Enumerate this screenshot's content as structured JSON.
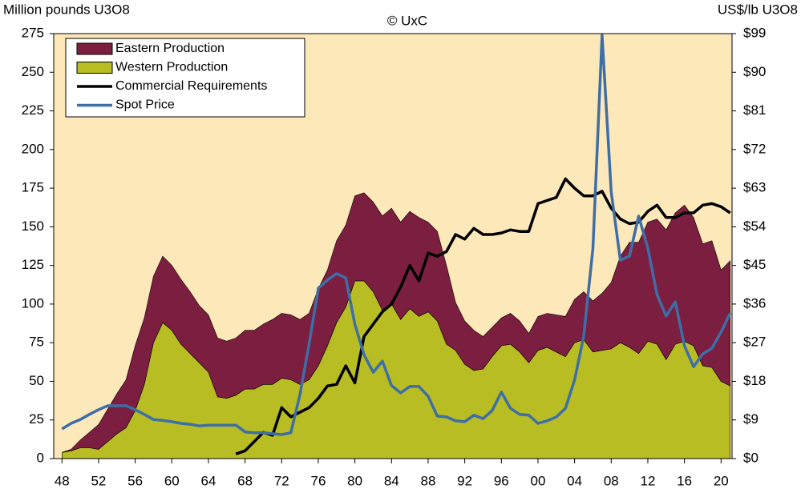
{
  "chart_data": {
    "type": "area",
    "title": "© UxC",
    "y_label": "Million pounds U3O8",
    "y2_label": "US$/lb U3O8",
    "x": [
      1948,
      1949,
      1950,
      1951,
      1952,
      1953,
      1954,
      1955,
      1956,
      1957,
      1958,
      1959,
      1960,
      1961,
      1962,
      1963,
      1964,
      1965,
      1966,
      1967,
      1968,
      1969,
      1970,
      1971,
      1972,
      1973,
      1974,
      1975,
      1976,
      1977,
      1978,
      1979,
      1980,
      1981,
      1982,
      1983,
      1984,
      1985,
      1986,
      1987,
      1988,
      1989,
      1990,
      1991,
      1992,
      1993,
      1994,
      1995,
      1996,
      1997,
      1998,
      1999,
      2000,
      2001,
      2002,
      2003,
      2004,
      2005,
      2006,
      2007,
      2008,
      2009,
      2010,
      2011,
      2012,
      2013,
      2014,
      2015,
      2016,
      2017,
      2018,
      2019,
      2020,
      2021
    ],
    "xlim": [
      1947.1,
      2021.2
    ],
    "xticks": [
      {
        "value": 1948,
        "label": "48"
      },
      {
        "value": 1952,
        "label": "52"
      },
      {
        "value": 1956,
        "label": "56"
      },
      {
        "value": 1960,
        "label": "60"
      },
      {
        "value": 1964,
        "label": "64"
      },
      {
        "value": 1968,
        "label": "68"
      },
      {
        "value": 1972,
        "label": "72"
      },
      {
        "value": 1976,
        "label": "76"
      },
      {
        "value": 1980,
        "label": "80"
      },
      {
        "value": 1984,
        "label": "84"
      },
      {
        "value": 1988,
        "label": "88"
      },
      {
        "value": 1992,
        "label": "92"
      },
      {
        "value": 1996,
        "label": "96"
      },
      {
        "value": 2000,
        "label": "00"
      },
      {
        "value": 2004,
        "label": "04"
      },
      {
        "value": 2008,
        "label": "08"
      },
      {
        "value": 2012,
        "label": "12"
      },
      {
        "value": 2016,
        "label": "16"
      },
      {
        "value": 2020,
        "label": "20"
      }
    ],
    "ylim": [
      0,
      275
    ],
    "yticks": [
      0,
      25,
      50,
      75,
      100,
      125,
      150,
      175,
      200,
      225,
      250,
      275
    ],
    "y2lim": [
      0,
      99
    ],
    "y2ticks": [
      {
        "value": 0,
        "label": "$0"
      },
      {
        "value": 9,
        "label": "$9"
      },
      {
        "value": 18,
        "label": "$18"
      },
      {
        "value": 27,
        "label": "$27"
      },
      {
        "value": 36,
        "label": "$36"
      },
      {
        "value": 45,
        "label": "$45"
      },
      {
        "value": 54,
        "label": "$54"
      },
      {
        "value": 63,
        "label": "$63"
      },
      {
        "value": 72,
        "label": "$72"
      },
      {
        "value": 81,
        "label": "$81"
      },
      {
        "value": 90,
        "label": "$90"
      },
      {
        "value": 99,
        "label": "$99"
      }
    ],
    "legend": "upper left",
    "background": "#fde8ba",
    "series": [
      {
        "name": "Eastern Production",
        "type": "area",
        "color": "#7c1e40",
        "values": [
          0,
          1,
          5,
          10,
          16,
          21,
          26,
          31,
          42,
          43,
          43,
          43,
          42,
          42,
          40,
          37,
          37,
          38,
          37,
          37,
          38,
          38,
          39,
          42,
          42,
          42,
          42,
          43,
          50,
          49,
          53,
          53,
          55,
          57,
          58,
          61,
          62,
          63,
          63,
          64,
          58,
          58,
          51,
          31,
          28,
          26,
          21,
          19,
          18,
          20,
          20,
          19,
          22,
          22,
          24,
          26,
          28,
          31,
          33,
          37,
          43,
          56,
          68,
          72,
          77,
          81,
          84,
          85,
          88,
          83,
          79,
          82,
          72,
          81
        ]
      },
      {
        "name": "Western Production",
        "type": "area",
        "color": "#b9bd24",
        "values": [
          4,
          5,
          7,
          7,
          6,
          11,
          16,
          20,
          31,
          48,
          75,
          88,
          83,
          74,
          68,
          62,
          56,
          40,
          39,
          41,
          45,
          45,
          48,
          48,
          52,
          51,
          48,
          51,
          60,
          73,
          88,
          98,
          115,
          115,
          108,
          96,
          100,
          90,
          97,
          92,
          95,
          89,
          74,
          70,
          61,
          57,
          58,
          66,
          73,
          74,
          69,
          62,
          70,
          72,
          69,
          66,
          75,
          77,
          69,
          70,
          71,
          75,
          72,
          68,
          76,
          74,
          64,
          74,
          76,
          73,
          60,
          59,
          50,
          47
        ]
      },
      {
        "name": "Commercial Requirements",
        "type": "line",
        "color": "#000000",
        "values": [
          null,
          null,
          null,
          null,
          null,
          null,
          null,
          null,
          null,
          null,
          null,
          null,
          null,
          null,
          null,
          null,
          null,
          null,
          null,
          3,
          5,
          11,
          17,
          15,
          33,
          27,
          30,
          33,
          39,
          47,
          48,
          60,
          49,
          79,
          87,
          95,
          100,
          111,
          125,
          115,
          133,
          131,
          134,
          145,
          142,
          149,
          145,
          145,
          146,
          148,
          147,
          147,
          165,
          167,
          169,
          181,
          175,
          170,
          170,
          173,
          162,
          155,
          152,
          153,
          160,
          164,
          156,
          156,
          159,
          159,
          164,
          165,
          163,
          159
        ]
      },
      {
        "name": "Spot Price",
        "type": "line",
        "axis": "y2",
        "color": "#3e6ea6",
        "values": [
          6.9,
          8.2,
          9.1,
          10.3,
          11.4,
          12.3,
          12.3,
          12.3,
          11.4,
          10.3,
          9.1,
          8.9,
          8.6,
          8.2,
          8.0,
          7.6,
          7.8,
          7.8,
          7.8,
          7.8,
          6.2,
          6.0,
          6.0,
          5.8,
          5.6,
          6.0,
          14.9,
          26.7,
          39.7,
          41.6,
          43.1,
          42.1,
          31.3,
          24.2,
          20.1,
          22.7,
          17.0,
          15.3,
          16.8,
          16.8,
          14.5,
          9.9,
          9.7,
          8.8,
          8.6,
          10.1,
          9.3,
          11.2,
          15.5,
          11.7,
          10.3,
          10.1,
          8.2,
          8.8,
          9.7,
          11.7,
          18.3,
          28.5,
          49.0,
          98.6,
          62.1,
          46.2,
          47.2,
          56.5,
          49.0,
          38.2,
          33.2,
          36.5,
          26.3,
          21.4,
          24.4,
          25.7,
          29.5,
          33.9
        ]
      }
    ]
  }
}
